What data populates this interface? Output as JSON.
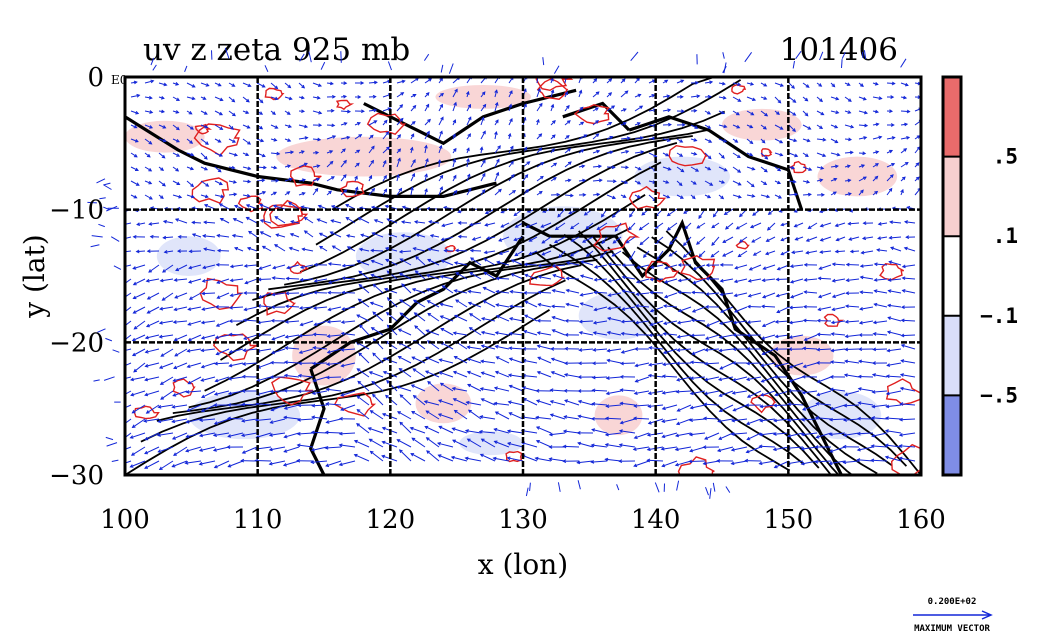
{
  "figure": {
    "title_left": "uv z zeta 925 mb",
    "title_right": "101406",
    "x_axis_label": "x (lon)",
    "y_axis_label": "y (lat)",
    "x_ticks": [
      "100",
      "110",
      "120",
      "130",
      "140",
      "150",
      "160"
    ],
    "y_ticks": [
      "0",
      "−10",
      "−20",
      "−30"
    ],
    "corner_mark": "E0"
  },
  "colorbar": {
    "labels": [
      ".5",
      ".1",
      "−.1",
      "−.5"
    ],
    "colors": [
      "#e96b6b",
      "#f7cfcf",
      "#ffffff",
      "#d9defa",
      "#7f8de6"
    ]
  },
  "vector_legend": {
    "magnitude": "0.200E+02",
    "caption": "MAXIMUM VECTOR"
  },
  "colors": {
    "vector": "#1226d8",
    "positive_contour": "#e02020",
    "geopotential_contour": "#000000",
    "positive_fill": "#f8d2d2",
    "negative_fill": "#dde2fa"
  },
  "map": {
    "lon_range": [
      100,
      160
    ],
    "lat_range": [
      -30,
      0
    ],
    "grid_lon": [
      110,
      120,
      130,
      140,
      150
    ],
    "grid_lat": [
      -10,
      -20
    ]
  }
}
